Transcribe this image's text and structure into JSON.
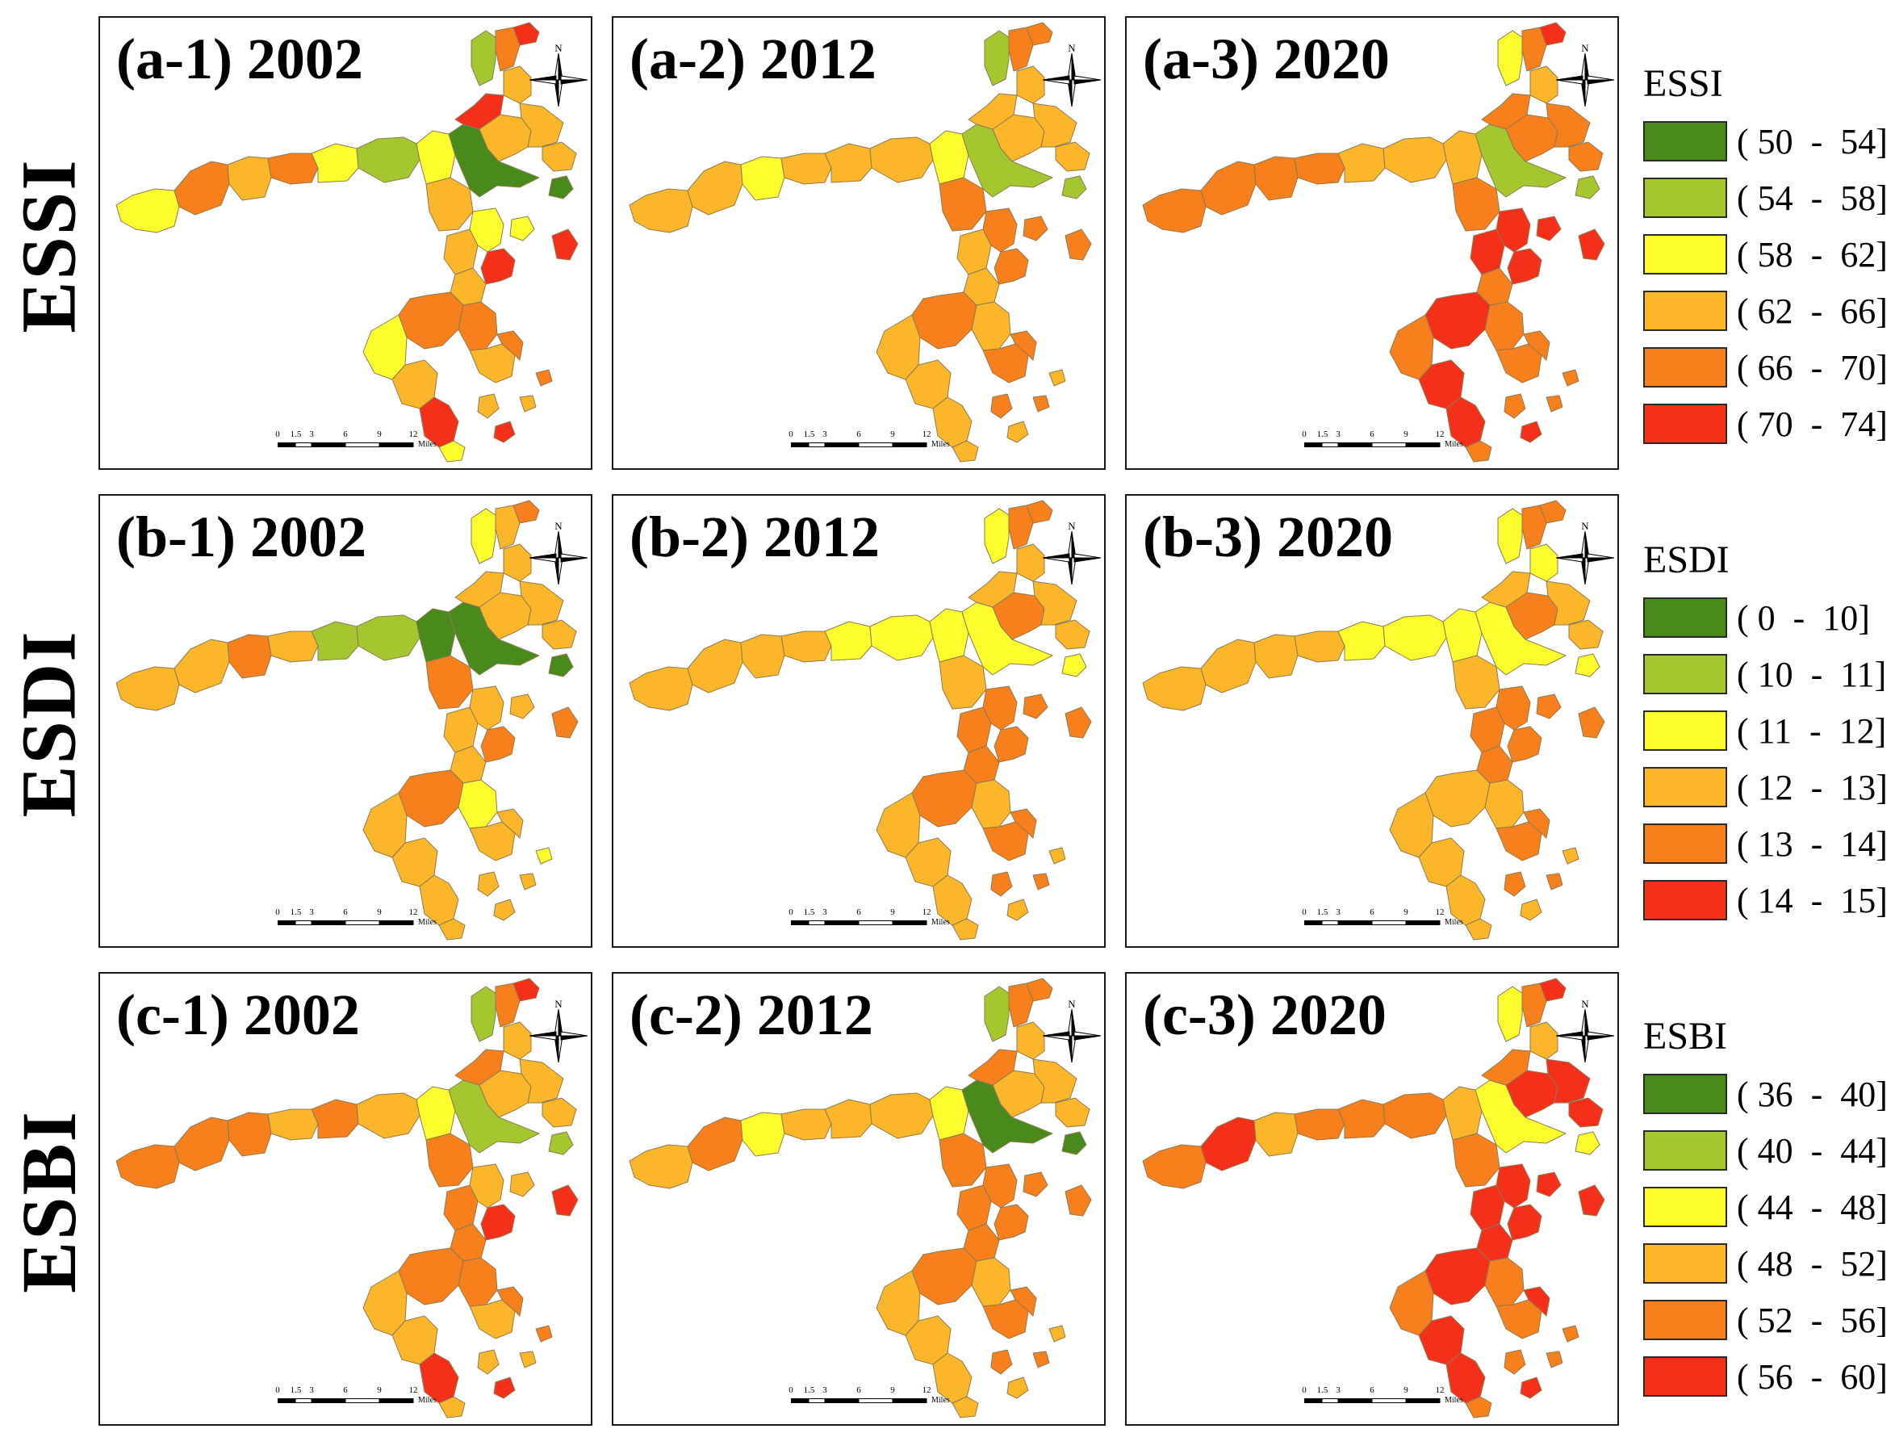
{
  "row_labels": [
    "ESSI",
    "ESDI",
    "ESBI"
  ],
  "panels": [
    {
      "title": "(a-1) 2002",
      "colors": [
        2,
        4,
        3,
        4,
        2,
        1,
        2,
        3,
        0,
        3,
        5,
        1,
        4,
        3,
        3,
        5,
        3,
        2,
        3,
        5,
        4,
        2,
        3,
        5,
        4,
        3,
        2,
        4
      ]
    },
    {
      "title": "(a-2) 2012",
      "colors": [
        3,
        3,
        2,
        3,
        3,
        3,
        2,
        4,
        1,
        3,
        3,
        1,
        4,
        3,
        3,
        4,
        3,
        4,
        3,
        4,
        4,
        3,
        3,
        3,
        3,
        4,
        3,
        4
      ]
    },
    {
      "title": "(a-3) 2020",
      "colors": [
        4,
        4,
        4,
        4,
        3,
        3,
        3,
        4,
        1,
        4,
        4,
        2,
        4,
        3,
        4,
        5,
        5,
        5,
        4,
        5,
        5,
        4,
        5,
        5,
        4,
        4,
        4,
        4
      ]
    },
    {
      "title": "(b-1) 2002",
      "colors": [
        3,
        3,
        4,
        3,
        1,
        1,
        0,
        4,
        0,
        3,
        3,
        2,
        3,
        3,
        3,
        4,
        3,
        3,
        3,
        4,
        4,
        3,
        3,
        3,
        2,
        3,
        3,
        3
      ]
    },
    {
      "title": "(b-2) 2012",
      "colors": [
        3,
        3,
        3,
        3,
        2,
        2,
        2,
        3,
        2,
        4,
        3,
        2,
        4,
        3,
        3,
        4,
        4,
        4,
        4,
        4,
        4,
        3,
        3,
        3,
        3,
        4,
        3,
        4
      ]
    },
    {
      "title": "(b-3) 2020",
      "colors": [
        3,
        3,
        3,
        3,
        2,
        2,
        2,
        3,
        2,
        4,
        3,
        2,
        4,
        2,
        3,
        4,
        4,
        4,
        4,
        4,
        3,
        3,
        3,
        3,
        3,
        4,
        3,
        4
      ]
    },
    {
      "title": "(c-1) 2002",
      "colors": [
        4,
        4,
        4,
        3,
        4,
        3,
        2,
        4,
        1,
        3,
        4,
        1,
        4,
        3,
        3,
        5,
        4,
        3,
        4,
        5,
        4,
        3,
        3,
        5,
        4,
        3,
        3,
        4
      ]
    },
    {
      "title": "(c-2) 2012",
      "colors": [
        3,
        4,
        2,
        3,
        3,
        3,
        2,
        4,
        0,
        3,
        4,
        1,
        4,
        3,
        3,
        4,
        4,
        4,
        4,
        4,
        4,
        3,
        3,
        3,
        3,
        4,
        3,
        4
      ]
    },
    {
      "title": "(c-3) 2020",
      "colors": [
        4,
        5,
        3,
        4,
        4,
        4,
        3,
        4,
        2,
        5,
        4,
        2,
        4,
        3,
        5,
        5,
        5,
        5,
        5,
        5,
        5,
        4,
        5,
        5,
        4,
        4,
        4,
        5
      ]
    }
  ],
  "north_label": "N",
  "scale": {
    "ticks": [
      "0",
      "1.5",
      "3",
      "6",
      "9",
      "12"
    ],
    "unit": "Miles"
  },
  "legends": [
    {
      "title": "ESSI",
      "ranges": [
        "( 50  -  54]",
        "( 54  -  58]",
        "( 58  -  62]",
        "( 62  -  66]",
        "( 66  -  70]",
        "( 70  -  74]"
      ]
    },
    {
      "title": "ESDI",
      "ranges": [
        "( 0  -  10]",
        "( 10  -  11]",
        "( 11  -  12]",
        "( 12  -  13]",
        "( 13  -  14]",
        "( 14  -  15]"
      ]
    },
    {
      "title": "ESBI",
      "ranges": [
        "( 36  -  40]",
        "( 40  -  44]",
        "( 44  -  48]",
        "( 48  -  52]",
        "( 52  -  56]",
        "( 56  -  60]"
      ]
    }
  ],
  "palette": [
    "#4a8a1c",
    "#a4c72f",
    "#fdfd2d",
    "#fbb62a",
    "#f7801d",
    "#f4301a"
  ],
  "region_stroke": "#8c7a52"
}
